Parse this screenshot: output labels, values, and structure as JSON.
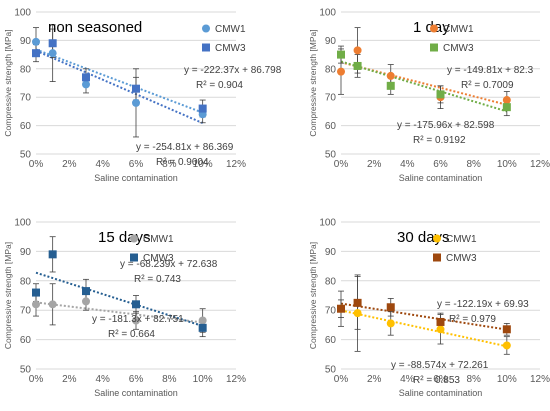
{
  "chart_data": [
    {
      "type": "scatter",
      "title": "non seasoned",
      "xlabel": "Saline contamination",
      "ylabel": "Compressive strength [MPa]",
      "xlim": [
        0,
        12
      ],
      "ylim": [
        50,
        100
      ],
      "xticks": [
        0,
        2,
        4,
        6,
        8,
        10,
        12
      ],
      "xtick_labels": [
        "0%",
        "2%",
        "4%",
        "6%",
        "8%",
        "10%",
        "12%"
      ],
      "yticks": [
        50,
        60,
        70,
        80,
        90,
        100
      ],
      "ytick_labels": [
        "50",
        "60",
        "70",
        "80",
        "90",
        "100"
      ],
      "grid": "horizontal",
      "legend": "top-right",
      "series": [
        {
          "name": "CMW1",
          "marker": "circle",
          "color": "#5b9bd5",
          "x": [
            0,
            1,
            3,
            6,
            10
          ],
          "y": [
            89.5,
            85.5,
            74.5,
            68,
            64
          ],
          "err": [
            5,
            10,
            3,
            12,
            3
          ],
          "trendline": {
            "slope": -222.37,
            "intercept": 86.798,
            "equation": "y = -222.37x + 86.798",
            "r2": "R² = 0.904"
          }
        },
        {
          "name": "CMW3",
          "marker": "square",
          "color": "#4472c4",
          "x": [
            0,
            1,
            3,
            6,
            10
          ],
          "y": [
            85.5,
            89,
            77,
            73,
            66
          ],
          "err": [
            3,
            5,
            3,
            4,
            3
          ],
          "trendline": {
            "slope": -254.81,
            "intercept": 86.369,
            "equation": "y = -254.81x + 86.369",
            "r2": "R² = 0.9004"
          }
        }
      ]
    },
    {
      "type": "scatter",
      "title": "1 day",
      "xlabel": "Saline contamination",
      "ylabel": "Compressive strength [MPa]",
      "xlim": [
        0,
        12
      ],
      "ylim": [
        50,
        100
      ],
      "xticks": [
        0,
        2,
        4,
        6,
        8,
        10,
        12
      ],
      "xtick_labels": [
        "0%",
        "2%",
        "4%",
        "6%",
        "8%",
        "10%",
        "12%"
      ],
      "yticks": [
        50,
        60,
        70,
        80,
        90,
        100
      ],
      "ytick_labels": [
        "50",
        "60",
        "70",
        "80",
        "90",
        "100"
      ],
      "grid": "horizontal",
      "legend": "top-right",
      "series": [
        {
          "name": "CMW1",
          "marker": "circle",
          "color": "#ed7d31",
          "x": [
            0,
            1,
            3,
            6,
            10
          ],
          "y": [
            79,
            86.5,
            77.5,
            70,
            69
          ],
          "err": [
            8,
            8,
            4,
            4,
            3
          ],
          "trendline": {
            "slope": -149.81,
            "intercept": 82.3,
            "equation": "y = -149.81x + 82.3",
            "r2": "R² = 0.7009"
          }
        },
        {
          "name": "CMW3",
          "marker": "square",
          "color": "#70ad47",
          "x": [
            0,
            1,
            3,
            6,
            10
          ],
          "y": [
            85,
            81,
            74,
            71,
            66.5
          ],
          "err": [
            3,
            4,
            3,
            3,
            3
          ],
          "trendline": {
            "slope": -175.96,
            "intercept": 82.598,
            "equation": "y = -175.96x + 82.598",
            "r2": "R² = 0.9192"
          }
        }
      ]
    },
    {
      "type": "scatter",
      "title": "15 days",
      "xlabel": "Saline contamination",
      "ylabel": "Compressive strength [MPa]",
      "xlim": [
        0,
        12
      ],
      "ylim": [
        50,
        100
      ],
      "xticks": [
        0,
        2,
        4,
        6,
        8,
        10,
        12
      ],
      "xtick_labels": [
        "0%",
        "2%",
        "4%",
        "6%",
        "8%",
        "10%",
        "12%"
      ],
      "yticks": [
        50,
        60,
        70,
        80,
        90,
        100
      ],
      "ytick_labels": [
        "50",
        "60",
        "70",
        "80",
        "90",
        "100"
      ],
      "grid": "horizontal",
      "legend": "top-right",
      "series": [
        {
          "name": "CMW1",
          "marker": "circle",
          "color": "#a5a5a5",
          "x": [
            0,
            1,
            3,
            6,
            10
          ],
          "y": [
            72,
            72,
            73,
            66.5,
            66.5
          ],
          "err": [
            4,
            7,
            3,
            3,
            4
          ],
          "trendline": {
            "slope": -68.239,
            "intercept": 72.638,
            "equation": "y = -68.239x + 72.638",
            "r2": "R² = 0.743"
          }
        },
        {
          "name": "CMW3",
          "marker": "square",
          "color": "#255e91",
          "x": [
            0,
            1,
            3,
            6,
            10
          ],
          "y": [
            76,
            89,
            76.5,
            72,
            64
          ],
          "err": [
            3,
            6,
            4,
            3,
            3
          ],
          "trendline": {
            "slope": -181.3,
            "intercept": 82.751,
            "equation": "y = -181.3x + 82.751",
            "r2": "R² = 0.664"
          }
        }
      ]
    },
    {
      "type": "scatter",
      "title": "30 days",
      "xlabel": "Saline contamination",
      "ylabel": "Compressive strength [MPa]",
      "xlim": [
        0,
        12
      ],
      "ylim": [
        50,
        100
      ],
      "xticks": [
        0,
        2,
        4,
        6,
        8,
        10,
        12
      ],
      "xtick_labels": [
        "0%",
        "2%",
        "4%",
        "6%",
        "8%",
        "10%",
        "12%"
      ],
      "yticks": [
        50,
        60,
        70,
        80,
        90,
        100
      ],
      "ytick_labels": [
        "50",
        "60",
        "70",
        "80",
        "90",
        "100"
      ],
      "grid": "horizontal",
      "legend": "top-right",
      "series": [
        {
          "name": "CMW1",
          "marker": "circle",
          "color": "#ffc000",
          "x": [
            0,
            1,
            3,
            6,
            10
          ],
          "y": [
            70.5,
            69,
            65.5,
            63.5,
            58
          ],
          "err": [
            3,
            13,
            4,
            5,
            3
          ],
          "trendline": {
            "slope": -122.19,
            "intercept": 69.93,
            "equation": "y = -122.19x + 69.93",
            "r2": "R² = 0.979"
          }
        },
        {
          "name": "CMW3",
          "marker": "square",
          "color": "#9e480e",
          "x": [
            0,
            1,
            3,
            6,
            10
          ],
          "y": [
            70.5,
            72.5,
            71,
            66,
            63.5
          ],
          "err": [
            6,
            9,
            3,
            3,
            2
          ],
          "trendline": {
            "slope": -88.574,
            "intercept": 72.261,
            "equation": "y = -88.574x + 72.261",
            "r2": "R² = 0.853"
          }
        }
      ]
    }
  ]
}
